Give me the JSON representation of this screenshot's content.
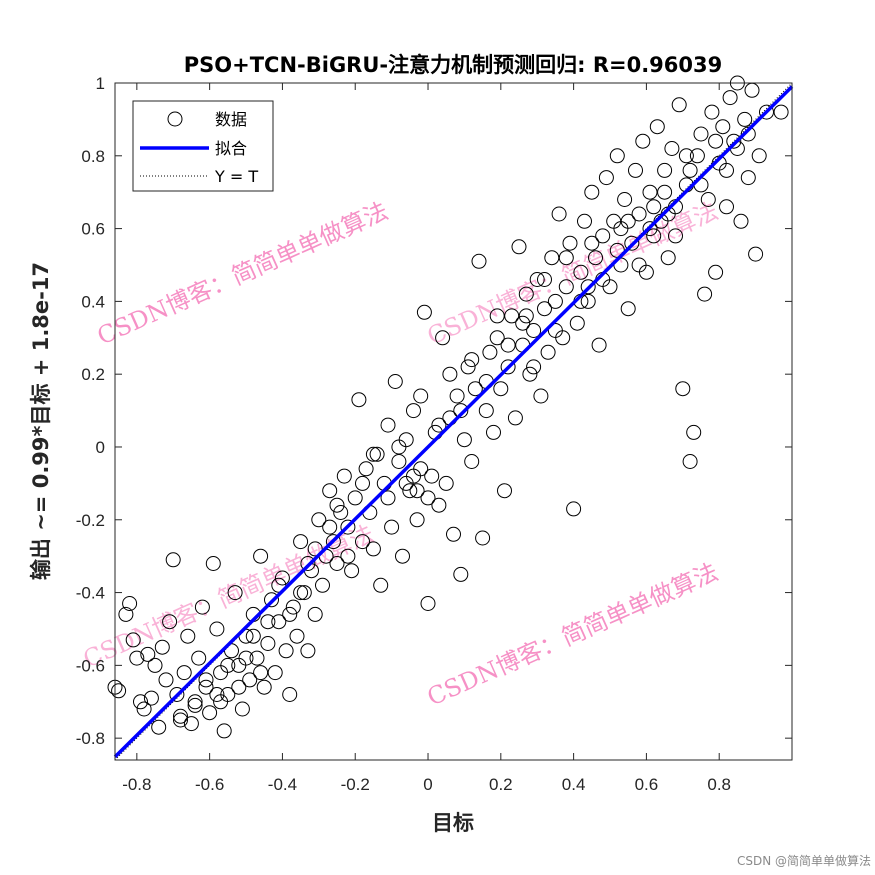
{
  "chart_data": {
    "type": "scatter",
    "title": "PSO+TCN-BiGRU-注意力机制预测回归: R=0.96039",
    "xlabel": "目标",
    "ylabel": "输出 ~= 0.99*目标 + 1.8e-17",
    "xlim": [
      -0.86,
      1.0
    ],
    "ylim": [
      -0.86,
      1.0
    ],
    "xticks": [
      -0.8,
      -0.6,
      -0.4,
      -0.2,
      0,
      0.2,
      0.4,
      0.6,
      0.8
    ],
    "yticks": [
      -0.8,
      -0.6,
      -0.4,
      -0.2,
      0,
      0.2,
      0.4,
      0.6,
      0.8,
      1
    ],
    "xtick_labels": [
      "-0.8",
      "-0.6",
      "-0.4",
      "-0.2",
      "0",
      "0.2",
      "0.4",
      "0.6",
      "0.8"
    ],
    "ytick_labels": [
      "-0.8",
      "-0.6",
      "-0.4",
      "-0.2",
      "0",
      "0.2",
      "0.4",
      "0.6",
      "0.8",
      "1"
    ],
    "grid": false,
    "legend_position": "top-left",
    "legend": [
      "数据",
      "拟合",
      "Y = T"
    ],
    "colors": {
      "data": "#000000",
      "fit": "#0000ff",
      "identity": "#000000"
    },
    "fit": {
      "slope": 0.99,
      "intercept": 0
    },
    "identity": {
      "slope": 1,
      "intercept": 0
    },
    "series": [
      {
        "name": "数据",
        "points": [
          [
            -0.86,
            -0.66
          ],
          [
            -0.85,
            -0.67
          ],
          [
            -0.83,
            -0.46
          ],
          [
            -0.82,
            -0.43
          ],
          [
            -0.81,
            -0.53
          ],
          [
            -0.8,
            -0.58
          ],
          [
            -0.79,
            -0.7
          ],
          [
            -0.78,
            -0.72
          ],
          [
            -0.77,
            -0.57
          ],
          [
            -0.76,
            -0.69
          ],
          [
            -0.75,
            -0.6
          ],
          [
            -0.74,
            -0.77
          ],
          [
            -0.73,
            -0.55
          ],
          [
            -0.72,
            -0.64
          ],
          [
            -0.71,
            -0.48
          ],
          [
            -0.7,
            -0.31
          ],
          [
            -0.69,
            -0.68
          ],
          [
            -0.68,
            -0.74
          ],
          [
            -0.67,
            -0.62
          ],
          [
            -0.66,
            -0.52
          ],
          [
            -0.65,
            -0.76
          ],
          [
            -0.64,
            -0.71
          ],
          [
            -0.63,
            -0.58
          ],
          [
            -0.62,
            -0.44
          ],
          [
            -0.61,
            -0.66
          ],
          [
            -0.6,
            -0.73
          ],
          [
            -0.59,
            -0.32
          ],
          [
            -0.58,
            -0.5
          ],
          [
            -0.57,
            -0.62
          ],
          [
            -0.56,
            -0.78
          ],
          [
            -0.55,
            -0.68
          ],
          [
            -0.54,
            -0.56
          ],
          [
            -0.53,
            -0.4
          ],
          [
            -0.52,
            -0.6
          ],
          [
            -0.51,
            -0.72
          ],
          [
            -0.5,
            -0.52
          ],
          [
            -0.49,
            -0.64
          ],
          [
            -0.48,
            -0.46
          ],
          [
            -0.47,
            -0.58
          ],
          [
            -0.46,
            -0.3
          ],
          [
            -0.45,
            -0.66
          ],
          [
            -0.44,
            -0.54
          ],
          [
            -0.43,
            -0.42
          ],
          [
            -0.42,
            -0.62
          ],
          [
            -0.41,
            -0.48
          ],
          [
            -0.4,
            -0.36
          ],
          [
            -0.39,
            -0.56
          ],
          [
            -0.38,
            -0.68
          ],
          [
            -0.37,
            -0.44
          ],
          [
            -0.36,
            -0.52
          ],
          [
            -0.35,
            -0.26
          ],
          [
            -0.34,
            -0.4
          ],
          [
            -0.33,
            -0.56
          ],
          [
            -0.32,
            -0.34
          ],
          [
            -0.31,
            -0.46
          ],
          [
            -0.3,
            -0.2
          ],
          [
            -0.29,
            -0.38
          ],
          [
            -0.28,
            -0.3
          ],
          [
            -0.27,
            -0.12
          ],
          [
            -0.26,
            -0.26
          ],
          [
            -0.25,
            -0.32
          ],
          [
            -0.24,
            -0.18
          ],
          [
            -0.23,
            -0.08
          ],
          [
            -0.22,
            -0.22
          ],
          [
            -0.21,
            -0.34
          ],
          [
            -0.2,
            -0.14
          ],
          [
            -0.19,
            0.13
          ],
          [
            -0.18,
            -0.26
          ],
          [
            -0.17,
            -0.06
          ],
          [
            -0.16,
            -0.18
          ],
          [
            -0.15,
            -0.28
          ],
          [
            -0.14,
            -0.02
          ],
          [
            -0.13,
            -0.38
          ],
          [
            -0.12,
            -0.1
          ],
          [
            -0.11,
            0.06
          ],
          [
            -0.1,
            -0.22
          ],
          [
            -0.09,
            0.18
          ],
          [
            -0.08,
            -0.04
          ],
          [
            -0.07,
            -0.3
          ],
          [
            -0.06,
            0.02
          ],
          [
            -0.05,
            -0.12
          ],
          [
            -0.04,
            0.1
          ],
          [
            -0.03,
            -0.2
          ],
          [
            -0.02,
            -0.06
          ],
          [
            -0.01,
            0.37
          ],
          [
            0.0,
            -0.43
          ],
          [
            0.01,
            -0.08
          ],
          [
            0.02,
            0.04
          ],
          [
            0.03,
            -0.16
          ],
          [
            0.04,
            0.3
          ],
          [
            0.05,
            -0.1
          ],
          [
            0.06,
            0.08
          ],
          [
            0.07,
            -0.24
          ],
          [
            0.08,
            0.14
          ],
          [
            0.09,
            -0.35
          ],
          [
            0.1,
            0.02
          ],
          [
            0.11,
            0.22
          ],
          [
            0.12,
            -0.04
          ],
          [
            0.13,
            0.16
          ],
          [
            0.14,
            0.51
          ],
          [
            0.15,
            -0.25
          ],
          [
            0.16,
            0.1
          ],
          [
            0.17,
            0.26
          ],
          [
            0.18,
            0.04
          ],
          [
            0.19,
            0.3
          ],
          [
            0.2,
            0.16
          ],
          [
            0.21,
            -0.12
          ],
          [
            0.22,
            0.22
          ],
          [
            0.23,
            0.36
          ],
          [
            0.24,
            0.08
          ],
          [
            0.25,
            0.55
          ],
          [
            0.26,
            0.28
          ],
          [
            0.27,
            0.42
          ],
          [
            0.28,
            0.2
          ],
          [
            0.29,
            0.32
          ],
          [
            0.3,
            0.46
          ],
          [
            0.31,
            0.14
          ],
          [
            0.32,
            0.38
          ],
          [
            0.33,
            0.26
          ],
          [
            0.34,
            0.52
          ],
          [
            0.35,
            0.4
          ],
          [
            0.36,
            0.64
          ],
          [
            0.37,
            0.3
          ],
          [
            0.38,
            0.44
          ],
          [
            0.39,
            0.56
          ],
          [
            0.4,
            -0.17
          ],
          [
            0.41,
            0.34
          ],
          [
            0.42,
            0.48
          ],
          [
            0.43,
            0.62
          ],
          [
            0.44,
            0.4
          ],
          [
            0.45,
            0.7
          ],
          [
            0.46,
            0.52
          ],
          [
            0.47,
            0.28
          ],
          [
            0.48,
            0.58
          ],
          [
            0.49,
            0.74
          ],
          [
            0.5,
            0.44
          ],
          [
            0.51,
            0.62
          ],
          [
            0.52,
            0.8
          ],
          [
            0.53,
            0.5
          ],
          [
            0.54,
            0.68
          ],
          [
            0.55,
            0.38
          ],
          [
            0.56,
            0.56
          ],
          [
            0.57,
            0.76
          ],
          [
            0.58,
            0.64
          ],
          [
            0.59,
            0.84
          ],
          [
            0.6,
            0.48
          ],
          [
            0.61,
            0.7
          ],
          [
            0.62,
            0.58
          ],
          [
            0.63,
            0.88
          ],
          [
            0.64,
            0.62
          ],
          [
            0.65,
            0.76
          ],
          [
            0.66,
            0.52
          ],
          [
            0.67,
            0.82
          ],
          [
            0.68,
            0.66
          ],
          [
            0.69,
            0.94
          ],
          [
            0.7,
            0.16
          ],
          [
            0.71,
            0.72
          ],
          [
            0.72,
            -0.04
          ],
          [
            0.73,
            0.04
          ],
          [
            0.74,
            0.8
          ],
          [
            0.75,
            0.86
          ],
          [
            0.76,
            0.42
          ],
          [
            0.77,
            0.68
          ],
          [
            0.78,
            0.92
          ],
          [
            0.79,
            0.48
          ],
          [
            0.8,
            0.78
          ],
          [
            0.81,
            0.88
          ],
          [
            0.82,
            0.66
          ],
          [
            0.83,
            0.96
          ],
          [
            0.84,
            0.84
          ],
          [
            0.85,
            1.0
          ],
          [
            0.86,
            0.62
          ],
          [
            0.87,
            0.9
          ],
          [
            0.88,
            0.74
          ],
          [
            0.89,
            0.98
          ],
          [
            0.9,
            0.53
          ],
          [
            0.91,
            0.8
          ],
          [
            0.93,
            0.92
          ],
          [
            0.97,
            0.92
          ],
          [
            -0.68,
            -0.75
          ],
          [
            -0.64,
            -0.7
          ],
          [
            -0.61,
            -0.64
          ],
          [
            -0.58,
            -0.68
          ],
          [
            -0.55,
            -0.6
          ],
          [
            -0.52,
            -0.66
          ],
          [
            -0.48,
            -0.52
          ],
          [
            -0.44,
            -0.48
          ],
          [
            -0.41,
            -0.38
          ],
          [
            -0.38,
            -0.46
          ],
          [
            -0.35,
            -0.4
          ],
          [
            -0.31,
            -0.28
          ],
          [
            -0.27,
            -0.22
          ],
          [
            -0.25,
            -0.16
          ],
          [
            -0.22,
            -0.3
          ],
          [
            -0.18,
            -0.1
          ],
          [
            -0.15,
            -0.02
          ],
          [
            -0.11,
            -0.14
          ],
          [
            -0.08,
            0.0
          ],
          [
            -0.04,
            -0.08
          ],
          [
            -0.02,
            0.14
          ],
          [
            0.03,
            0.06
          ],
          [
            0.06,
            0.2
          ],
          [
            0.09,
            0.1
          ],
          [
            0.12,
            0.24
          ],
          [
            0.16,
            0.18
          ],
          [
            0.19,
            0.36
          ],
          [
            0.22,
            0.28
          ],
          [
            0.26,
            0.34
          ],
          [
            0.29,
            0.22
          ],
          [
            0.32,
            0.46
          ],
          [
            0.35,
            0.32
          ],
          [
            0.38,
            0.52
          ],
          [
            0.42,
            0.4
          ],
          [
            0.45,
            0.56
          ],
          [
            0.48,
            0.46
          ],
          [
            0.52,
            0.54
          ],
          [
            0.55,
            0.62
          ],
          [
            0.58,
            0.5
          ],
          [
            0.62,
            0.66
          ],
          [
            0.65,
            0.7
          ],
          [
            0.68,
            0.58
          ],
          [
            0.72,
            0.76
          ],
          [
            0.75,
            0.72
          ],
          [
            0.79,
            0.84
          ],
          [
            0.82,
            0.76
          ],
          [
            0.85,
            0.82
          ],
          [
            0.88,
            0.86
          ],
          [
            -0.57,
            -0.7
          ],
          [
            -0.5,
            -0.58
          ],
          [
            -0.46,
            -0.62
          ],
          [
            -0.33,
            -0.32
          ],
          [
            -0.06,
            -0.1
          ],
          [
            -0.03,
            -0.12
          ],
          [
            0.0,
            -0.14
          ],
          [
            0.27,
            0.36
          ],
          [
            0.44,
            0.44
          ],
          [
            0.53,
            0.6
          ],
          [
            0.61,
            0.6
          ],
          [
            0.66,
            0.64
          ],
          [
            0.71,
            0.8
          ]
        ]
      }
    ]
  },
  "watermark": {
    "text": "CSDN博客：简简单单做算法",
    "color": "#f472b6"
  },
  "credit": "CSDN @简简单单做算法"
}
